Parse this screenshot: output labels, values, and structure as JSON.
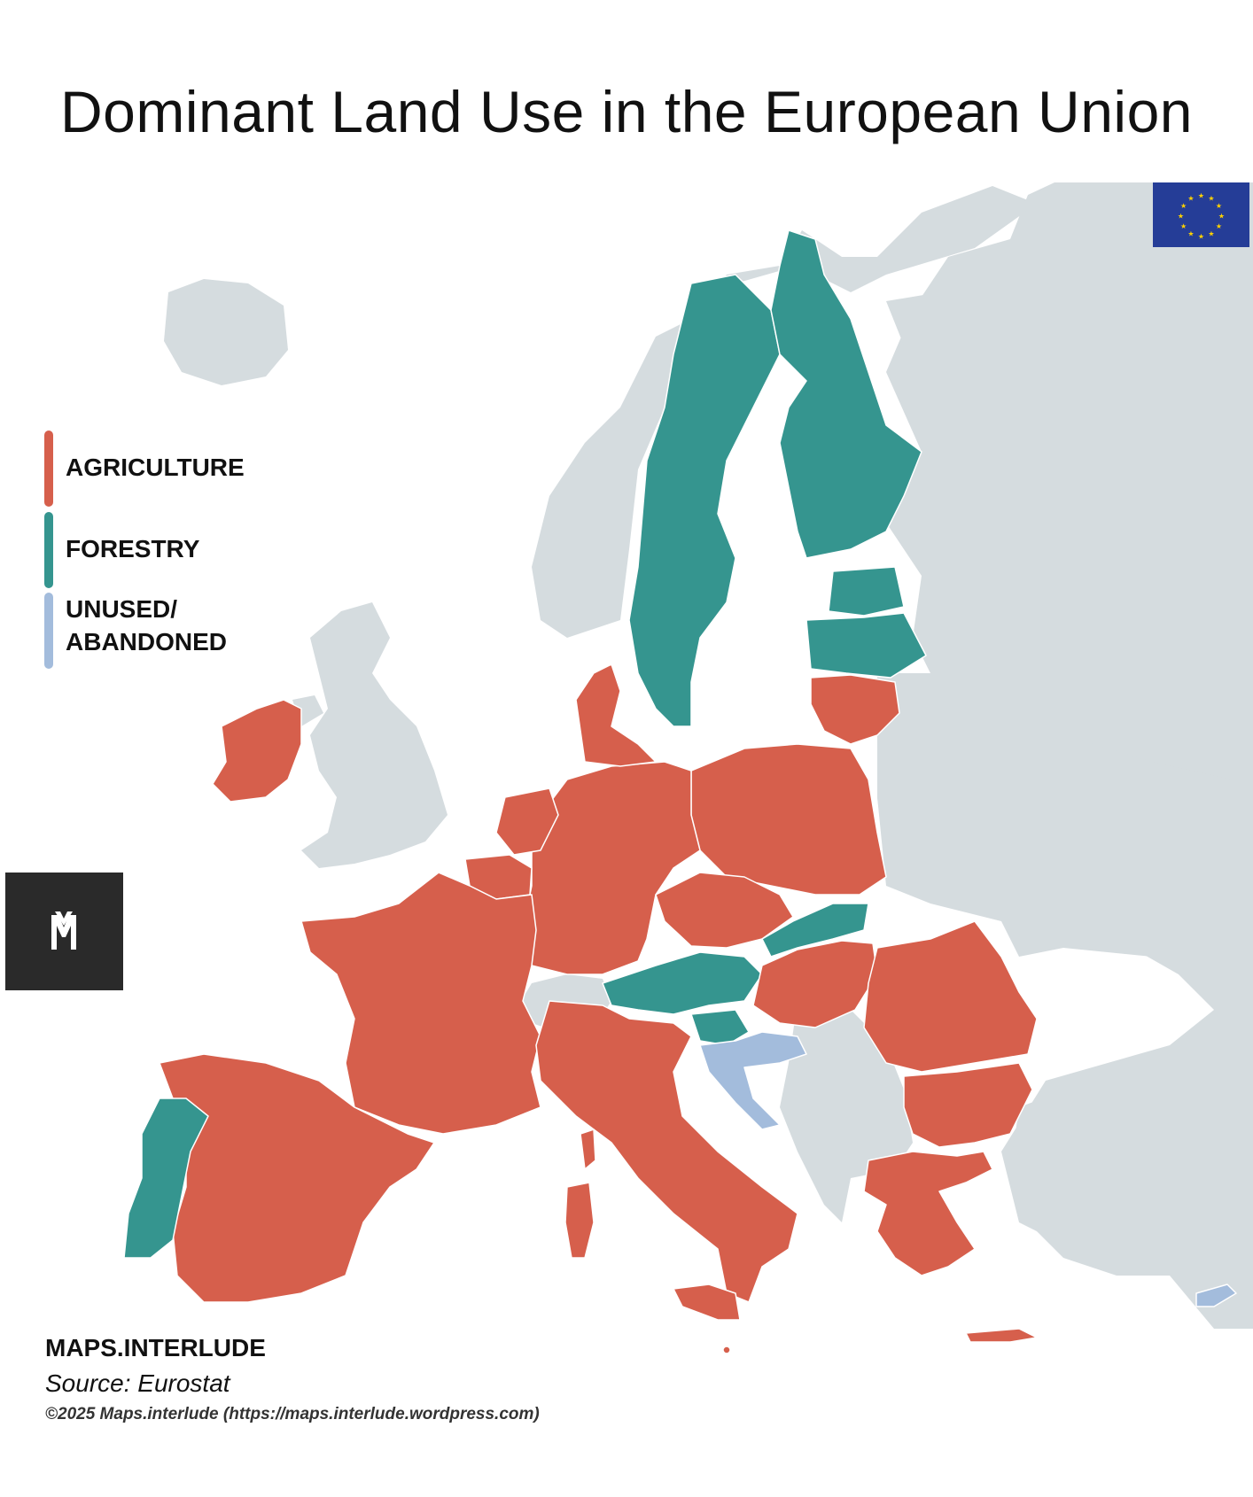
{
  "title": "Dominant Land Use in the European Union",
  "legend": [
    {
      "label_lines": [
        "AGRICULTURE"
      ],
      "category": "agriculture",
      "color": "#d65f4c"
    },
    {
      "label_lines": [
        "FORESTRY"
      ],
      "category": "forestry",
      "color": "#35958f"
    },
    {
      "label_lines": [
        "UNUSED/",
        "ABANDONED"
      ],
      "category": "unused",
      "color": "#a3bcdc"
    }
  ],
  "colors": {
    "agriculture": "#d65f4c",
    "forestry": "#35958f",
    "unused": "#a3bcdc",
    "non_eu": "#d5dcdf",
    "sea": "#ffffff",
    "eu_flag_blue": "#253d97",
    "eu_flag_stars": "#ffd200"
  },
  "map": {
    "countries": [
      {
        "name": "Sweden",
        "category": "forestry"
      },
      {
        "name": "Finland",
        "category": "forestry"
      },
      {
        "name": "Estonia",
        "category": "forestry"
      },
      {
        "name": "Latvia",
        "category": "forestry"
      },
      {
        "name": "Portugal",
        "category": "forestry"
      },
      {
        "name": "Austria",
        "category": "forestry"
      },
      {
        "name": "Slovakia",
        "category": "forestry"
      },
      {
        "name": "Slovenia",
        "category": "forestry"
      },
      {
        "name": "Croatia",
        "category": "unused"
      },
      {
        "name": "Cyprus",
        "category": "unused"
      },
      {
        "name": "Lithuania",
        "category": "agriculture"
      },
      {
        "name": "Poland",
        "category": "agriculture"
      },
      {
        "name": "Germany",
        "category": "agriculture"
      },
      {
        "name": "Denmark",
        "category": "agriculture"
      },
      {
        "name": "Netherlands",
        "category": "agriculture"
      },
      {
        "name": "Belgium",
        "category": "agriculture"
      },
      {
        "name": "Luxembourg",
        "category": "agriculture"
      },
      {
        "name": "France",
        "category": "agriculture"
      },
      {
        "name": "Spain",
        "category": "agriculture"
      },
      {
        "name": "Italy",
        "category": "agriculture"
      },
      {
        "name": "Czechia",
        "category": "agriculture"
      },
      {
        "name": "Hungary",
        "category": "agriculture"
      },
      {
        "name": "Romania",
        "category": "agriculture"
      },
      {
        "name": "Bulgaria",
        "category": "agriculture"
      },
      {
        "name": "Greece",
        "category": "agriculture"
      },
      {
        "name": "Ireland",
        "category": "agriculture"
      },
      {
        "name": "Malta",
        "category": "agriculture"
      }
    ]
  },
  "logo_icon": "maps-interlude-m-logo",
  "flag_icon": "eu-flag",
  "credits": {
    "brand": "MAPS.INTERLUDE",
    "source": "Source: Eurostat",
    "copyright": "©2025 Maps.interlude (https://maps.interlude.wordpress.com)"
  }
}
